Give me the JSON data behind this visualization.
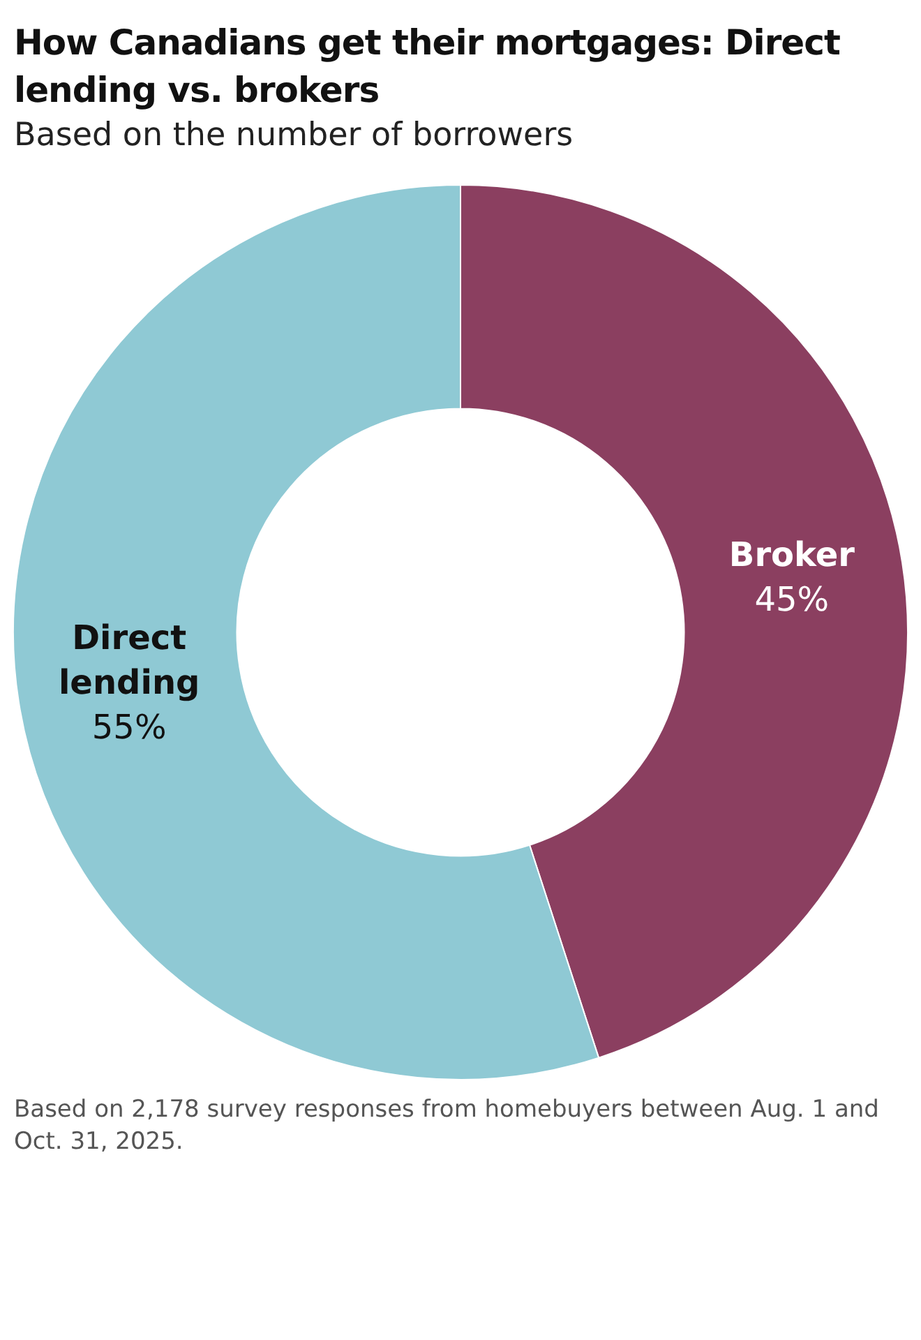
{
  "chart_data": {
    "type": "donut",
    "title": "How Canadians get their mortgages: Direct lending vs. brokers",
    "subtitle": "Based on the number of borrowers",
    "categories": [
      "Broker",
      "Direct lending"
    ],
    "values": [
      45,
      55
    ],
    "colors": [
      "#8b3f60",
      "#8fc9d4"
    ],
    "value_labels": [
      "45%",
      "55%"
    ],
    "legend": false,
    "annotations": [
      "Based on 2,178 survey responses from homebuyers between Aug. 1 and Oct. 31, 2025."
    ]
  }
}
